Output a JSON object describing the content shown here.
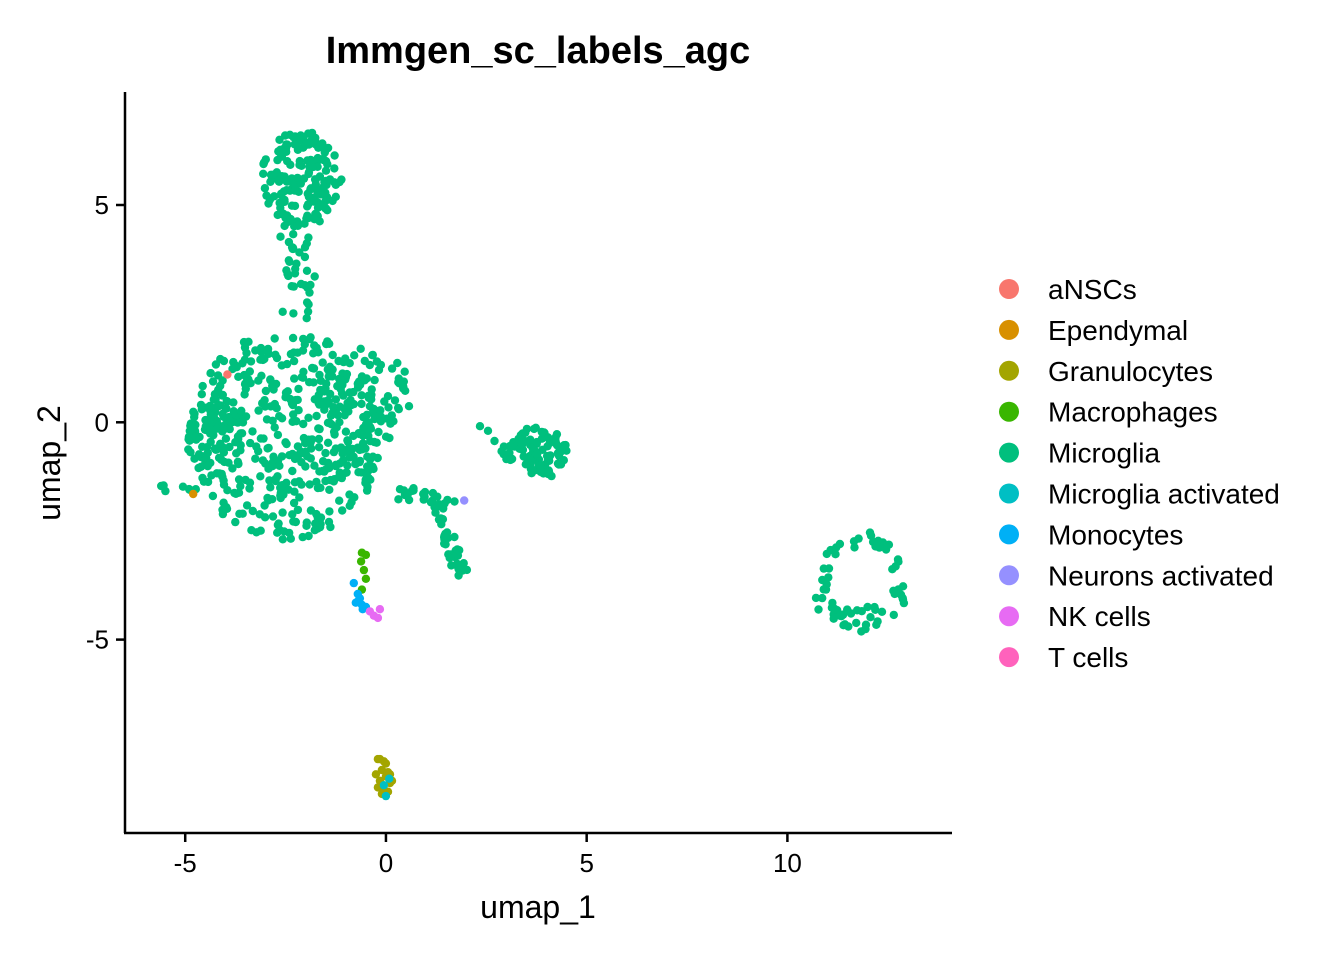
{
  "chart_data": {
    "type": "scatter",
    "title": "Immgen_sc_labels_agc",
    "xlabel": "umap_1",
    "ylabel": "umap_2",
    "xlim": [
      -6.5,
      14.1
    ],
    "ylim": [
      -9.45,
      7.6
    ],
    "xticks": [
      -5,
      0,
      5,
      10
    ],
    "yticks": [
      5,
      0,
      -5
    ],
    "xtick_labels": [
      "-5",
      "0",
      "5",
      "10"
    ],
    "ytick_labels": [
      "5",
      "0",
      "-5"
    ],
    "grid": false,
    "legend_position": "right",
    "series": [
      {
        "name": "aNSCs",
        "color": "#F8766D",
        "points": [
          [
            -3.95,
            1.1
          ]
        ]
      },
      {
        "name": "Ependymal",
        "color": "#D89000",
        "points": [
          [
            -4.8,
            -1.65
          ]
        ]
      },
      {
        "name": "Granulocytes",
        "color": "#A3A500",
        "points": [
          [
            -0.2,
            -7.75
          ],
          [
            -0.05,
            -7.8
          ],
          [
            0.0,
            -7.85
          ],
          [
            -0.25,
            -8.1
          ],
          [
            -0.1,
            -8.0
          ],
          [
            0.05,
            -8.05
          ],
          [
            0.0,
            -8.15
          ],
          [
            -0.15,
            -8.25
          ],
          [
            0.1,
            -8.3
          ],
          [
            -0.2,
            -8.4
          ],
          [
            -0.05,
            -8.45
          ],
          [
            0.15,
            -8.25
          ],
          [
            -0.1,
            -8.55
          ],
          [
            0.05,
            -8.5
          ],
          [
            -0.15,
            -7.75
          ],
          [
            0.1,
            -8.1
          ]
        ]
      },
      {
        "name": "Macrophages",
        "color": "#39B600",
        "points": [
          [
            -0.6,
            -3.0
          ],
          [
            -0.5,
            -3.05
          ],
          [
            -0.62,
            -3.2
          ],
          [
            -0.55,
            -3.4
          ],
          [
            -0.5,
            -3.6
          ],
          [
            -0.6,
            -3.85
          ]
        ]
      },
      {
        "name": "Microglia",
        "color": "#00BF7D",
        "points": []
      },
      {
        "name": "Microglia activated",
        "color": "#00BFC4",
        "points": [
          [
            -0.05,
            -8.35
          ],
          [
            0.0,
            -8.6
          ],
          [
            0.08,
            -8.2
          ]
        ]
      },
      {
        "name": "Monocytes",
        "color": "#00B0F6",
        "points": [
          [
            -0.8,
            -3.7
          ],
          [
            -0.7,
            -3.95
          ],
          [
            -0.65,
            -4.05
          ],
          [
            -0.75,
            -4.15
          ],
          [
            -0.6,
            -4.2
          ],
          [
            -0.5,
            -4.25
          ],
          [
            -0.58,
            -4.3
          ],
          [
            -0.68,
            -4.1
          ]
        ]
      },
      {
        "name": "Neurons activated",
        "color": "#9590FF",
        "points": [
          [
            1.95,
            -1.8
          ]
        ]
      },
      {
        "name": "NK cells",
        "color": "#E76BF3",
        "points": [
          [
            -0.4,
            -4.35
          ],
          [
            -0.3,
            -4.45
          ],
          [
            -0.2,
            -4.5
          ],
          [
            -0.15,
            -4.3
          ]
        ]
      },
      {
        "name": "T cells",
        "color": "#FF62BC",
        "points": []
      }
    ]
  }
}
